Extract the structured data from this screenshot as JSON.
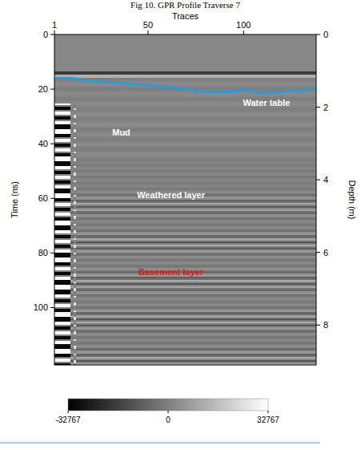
{
  "chart_data": {
    "type": "radargram",
    "title": "Fig 10. GPR Profile Traverse 7",
    "x_label": "Traces",
    "y_label": "Time (ns)",
    "y2_label": "Depth (m)",
    "xlim": [
      1,
      138
    ],
    "xticks": [
      1,
      50,
      100
    ],
    "ylim": [
      0,
      121
    ],
    "yticks": [
      0,
      20,
      40,
      60,
      80,
      100
    ],
    "y2lim": [
      0,
      9.1
    ],
    "y2ticks": [
      0,
      2,
      4,
      6,
      8
    ],
    "grid": false,
    "series": [
      {
        "name": "Water table",
        "type": "line",
        "color": "#2b9bd8",
        "line_style": "solid",
        "marker": "none",
        "x": [
          1,
          10,
          20,
          40,
          60,
          80,
          95,
          100,
          103,
          110,
          120,
          137
        ],
        "values": [
          16,
          16,
          17,
          18,
          19,
          21,
          21,
          20,
          20.5,
          21.5,
          21,
          20
        ]
      }
    ],
    "annotations": [
      {
        "text": "Mud",
        "color": "#ffffff"
      },
      {
        "text": "Weathered layer",
        "color": "#ffffff"
      },
      {
        "text": "Basement layer",
        "color": "#d02020"
      }
    ],
    "colorbar": {
      "range": [
        -32767,
        32767
      ],
      "ticks": [
        -32767,
        0,
        32767
      ]
    }
  }
}
